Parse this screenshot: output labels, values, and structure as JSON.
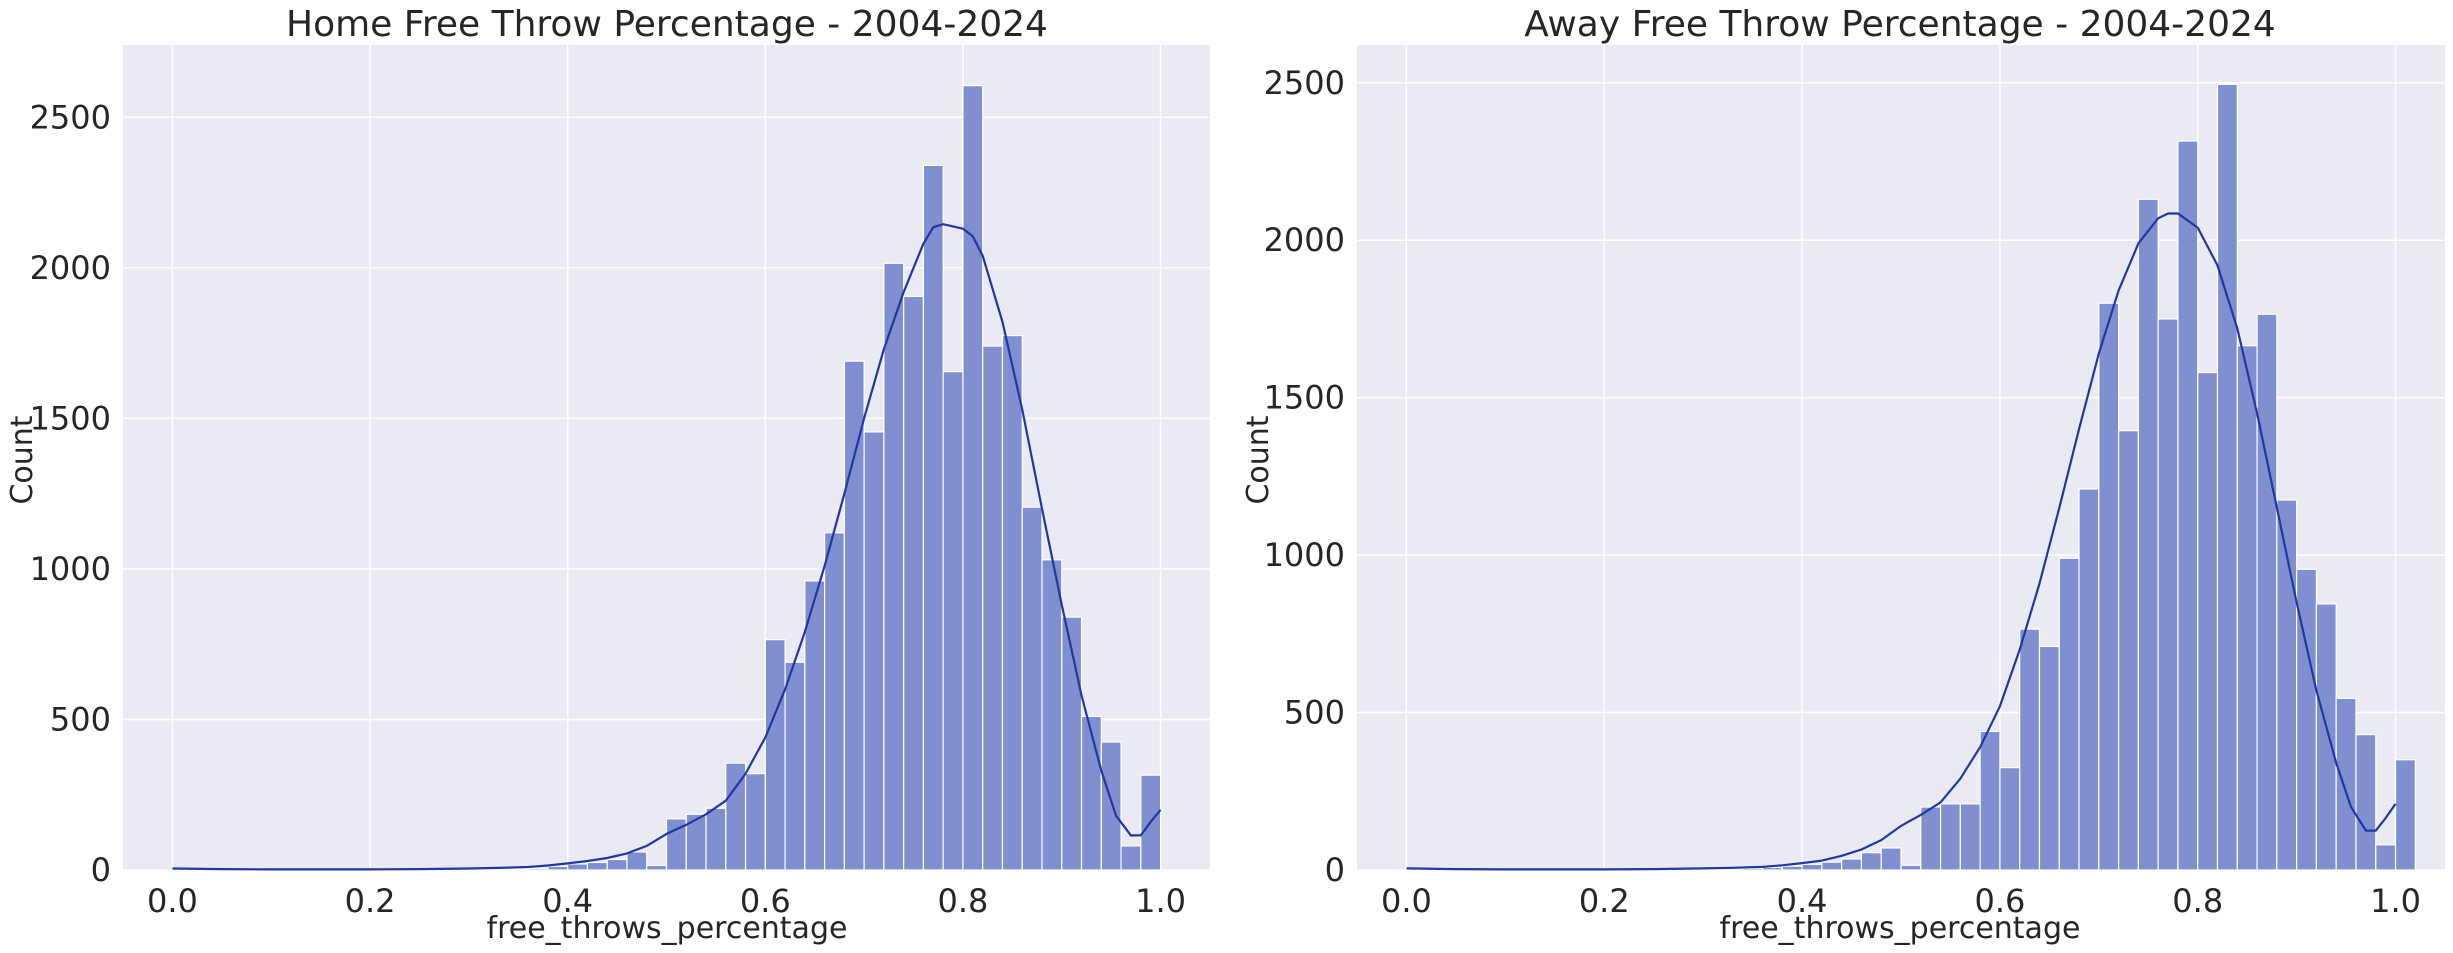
{
  "colors": {
    "background": "#eaeaf2",
    "grid": "#ffffff",
    "bar_fill": "#7f8fd0",
    "bar_edge": "#ffffff",
    "kde_line": "#2238a0"
  },
  "chart_data": [
    {
      "type": "bar",
      "title": "Home Free Throw Percentage - 2004-2024",
      "xlabel": "free_throws_percentage",
      "ylabel": "Count",
      "xlim": [
        -0.05,
        1.05
      ],
      "ylim": [
        0,
        2740
      ],
      "xticks": [
        0.0,
        0.2,
        0.4,
        0.6,
        0.8,
        1.0
      ],
      "xtick_labels": [
        "0.0",
        "0.2",
        "0.4",
        "0.6",
        "0.8",
        "1.0"
      ],
      "yticks": [
        0,
        500,
        1000,
        1500,
        2000,
        2500
      ],
      "ytick_labels": [
        "0",
        "500",
        "1000",
        "1500",
        "2000",
        "2500"
      ],
      "grid": true,
      "kde": true,
      "bin_width": 0.02,
      "bin_start": 0.0,
      "values": [
        5,
        0,
        0,
        0,
        0,
        0,
        0,
        0,
        0,
        0,
        0,
        0,
        0,
        0,
        0,
        2,
        0,
        4,
        5,
        12,
        20,
        25,
        35,
        60,
        15,
        170,
        185,
        205,
        355,
        320,
        765,
        690,
        960,
        1120,
        1690,
        1455,
        2015,
        1905,
        2340,
        1655,
        2605,
        1740,
        1775,
        1205,
        1030,
        840,
        510,
        425,
        80,
        315
      ],
      "kde_points": [
        [
          0.0,
          5
        ],
        [
          0.05,
          3
        ],
        [
          0.1,
          2
        ],
        [
          0.15,
          2
        ],
        [
          0.2,
          2
        ],
        [
          0.25,
          3
        ],
        [
          0.3,
          5
        ],
        [
          0.33,
          7
        ],
        [
          0.36,
          10
        ],
        [
          0.38,
          15
        ],
        [
          0.4,
          22
        ],
        [
          0.42,
          30
        ],
        [
          0.44,
          40
        ],
        [
          0.46,
          55
        ],
        [
          0.48,
          80
        ],
        [
          0.5,
          120
        ],
        [
          0.52,
          150
        ],
        [
          0.54,
          185
        ],
        [
          0.56,
          230
        ],
        [
          0.58,
          320
        ],
        [
          0.6,
          440
        ],
        [
          0.62,
          600
        ],
        [
          0.64,
          790
        ],
        [
          0.66,
          1010
        ],
        [
          0.68,
          1250
        ],
        [
          0.7,
          1500
        ],
        [
          0.72,
          1730
        ],
        [
          0.74,
          1920
        ],
        [
          0.76,
          2080
        ],
        [
          0.77,
          2135
        ],
        [
          0.78,
          2145
        ],
        [
          0.8,
          2130
        ],
        [
          0.81,
          2105
        ],
        [
          0.82,
          2040
        ],
        [
          0.84,
          1820
        ],
        [
          0.86,
          1530
        ],
        [
          0.88,
          1200
        ],
        [
          0.9,
          880
        ],
        [
          0.92,
          580
        ],
        [
          0.94,
          330
        ],
        [
          0.955,
          180
        ],
        [
          0.97,
          115
        ],
        [
          0.98,
          115
        ],
        [
          0.99,
          160
        ],
        [
          1.0,
          200
        ]
      ]
    },
    {
      "type": "bar",
      "title": "Away Free Throw Percentage - 2004-2024",
      "xlabel": "free_throws_percentage",
      "ylabel": "Count",
      "xlim": [
        -0.05,
        1.05
      ],
      "ylim": [
        0,
        2620
      ],
      "xticks": [
        0.0,
        0.2,
        0.4,
        0.6,
        0.8,
        1.0
      ],
      "xtick_labels": [
        "0.0",
        "0.2",
        "0.4",
        "0.6",
        "0.8",
        "1.0"
      ],
      "yticks": [
        0,
        500,
        1000,
        1500,
        2000,
        2500
      ],
      "ytick_labels": [
        "0",
        "500",
        "1000",
        "1500",
        "2000",
        "2500"
      ],
      "grid": true,
      "kde": true,
      "bin_width": 0.02,
      "bin_start": 0.0,
      "values": [
        5,
        0,
        0,
        0,
        0,
        0,
        0,
        0,
        0,
        0,
        0,
        0,
        0,
        0,
        0,
        3,
        0,
        5,
        8,
        12,
        18,
        25,
        35,
        55,
        70,
        15,
        200,
        210,
        210,
        440,
        325,
        765,
        710,
        990,
        1210,
        1800,
        1395,
        2130,
        1750,
        2315,
        1580,
        2495,
        1665,
        1765,
        1175,
        955,
        845,
        545,
        430,
        80,
        350
      ],
      "kde_points": [
        [
          0.0,
          5
        ],
        [
          0.05,
          3
        ],
        [
          0.1,
          2
        ],
        [
          0.15,
          2
        ],
        [
          0.2,
          2
        ],
        [
          0.25,
          3
        ],
        [
          0.3,
          5
        ],
        [
          0.33,
          7
        ],
        [
          0.36,
          10
        ],
        [
          0.38,
          15
        ],
        [
          0.4,
          22
        ],
        [
          0.42,
          30
        ],
        [
          0.44,
          45
        ],
        [
          0.46,
          65
        ],
        [
          0.48,
          95
        ],
        [
          0.5,
          140
        ],
        [
          0.52,
          175
        ],
        [
          0.54,
          215
        ],
        [
          0.56,
          290
        ],
        [
          0.58,
          390
        ],
        [
          0.6,
          520
        ],
        [
          0.62,
          700
        ],
        [
          0.64,
          910
        ],
        [
          0.66,
          1150
        ],
        [
          0.68,
          1400
        ],
        [
          0.7,
          1640
        ],
        [
          0.72,
          1840
        ],
        [
          0.74,
          1990
        ],
        [
          0.76,
          2070
        ],
        [
          0.77,
          2085
        ],
        [
          0.78,
          2085
        ],
        [
          0.8,
          2040
        ],
        [
          0.82,
          1920
        ],
        [
          0.84,
          1720
        ],
        [
          0.86,
          1450
        ],
        [
          0.88,
          1150
        ],
        [
          0.9,
          850
        ],
        [
          0.92,
          570
        ],
        [
          0.94,
          340
        ],
        [
          0.955,
          200
        ],
        [
          0.97,
          125
        ],
        [
          0.98,
          125
        ],
        [
          0.99,
          165
        ],
        [
          1.0,
          210
        ]
      ]
    }
  ]
}
